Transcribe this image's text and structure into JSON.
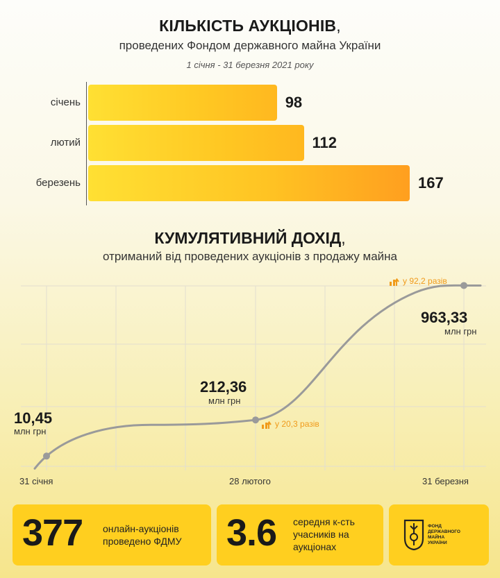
{
  "header1": {
    "title": "КІЛЬКІСТЬ АУКЦІОНІВ",
    "title_tail": ",",
    "subtitle": "проведених Фондом державного майна України",
    "period": "1 січня - 31 березня 2021 року"
  },
  "header2": {
    "title": "КУМУЛЯТИВНИЙ ДОХІД",
    "title_tail": ",",
    "subtitle": "отриманий від проведених аукціонів з продажу майна"
  },
  "chart_data": [
    {
      "type": "bar",
      "orientation": "horizontal",
      "categories": [
        "січень",
        "лютий",
        "березень"
      ],
      "values": [
        98,
        112,
        167
      ],
      "value_labels": [
        "98",
        "112",
        "167"
      ],
      "xlim": [
        0,
        167
      ]
    },
    {
      "type": "line",
      "x": [
        "31 січня",
        "28 лютого",
        "31 березня"
      ],
      "values": [
        10.45,
        212.36,
        963.33
      ],
      "value_labels": [
        "10,45",
        "212,36",
        "963,33"
      ],
      "unit": "млн грн",
      "growth_labels": [
        "у 20,3 разів",
        "у 92,2 разів"
      ],
      "ylim": [
        0,
        1000
      ],
      "grid": true,
      "colors": {
        "line": "#9a9a9a",
        "point": "#9a9a9a",
        "growth": "#f09a1a"
      }
    }
  ],
  "cards": [
    {
      "number": "377",
      "line1": "онлайн-аукціонів",
      "line2": "проведено ФДМУ"
    },
    {
      "number": "3.6",
      "line1": "середня к-сть",
      "line2": "учасників на",
      "line3": "аукціонах"
    }
  ],
  "logo": {
    "line1": "ФОНД",
    "line2": "ДЕРЖАВНОГО",
    "line3": "МАЙНА",
    "line4": "УКРАЇНИ",
    "icon": "fdmu-logo-icon"
  },
  "colors": {
    "accent": "#ffcf1f",
    "bar_start": "#ffe033",
    "bar_end": "#ff9f1f"
  }
}
